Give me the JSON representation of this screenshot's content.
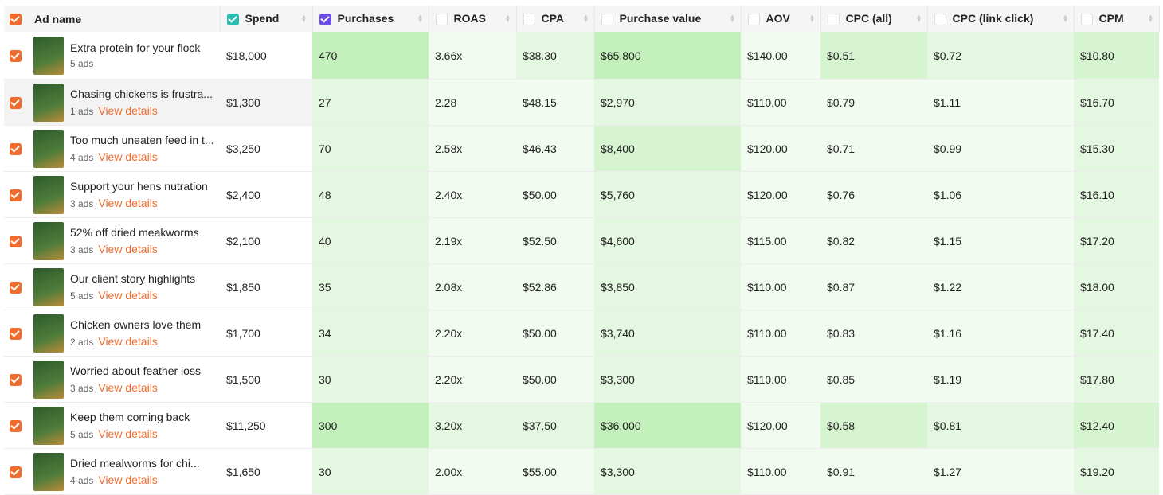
{
  "header": {
    "columns": [
      "Ad name",
      "Spend",
      "Purchases",
      "ROAS",
      "CPA",
      "Purchase value",
      "AOV",
      "CPC (all)",
      "CPC (link click)",
      "CPM"
    ]
  },
  "table": {
    "rows": [
      {
        "name": "Extra protein for your flock",
        "ads": "5 ads",
        "cells": [
          "$18,000",
          "470",
          "3.66x",
          "$38.30",
          "$65,800",
          "$140.00",
          "$0.51",
          "$0.72",
          "$10.80"
        ],
        "shades": [
          "#ffffff",
          "#c3f0bb",
          "#f1fbef",
          "#e4f7e0",
          "#c3f0bb",
          "#f1fbef",
          "#d6f4d0",
          "#e4f7e0",
          "#d6f4d0"
        ]
      },
      {
        "name": "Chasing chickens is frustra...",
        "ads": "1 ads",
        "link": "View details",
        "cells": [
          "$1,300",
          "27",
          "2.28",
          "$48.15",
          "$2,970",
          "$110.00",
          "$0.79",
          "$1.11",
          "$16.70"
        ],
        "shades": [
          "#ffffff",
          "#e4f7e0",
          "#f1fbef",
          "#f1fbef",
          "#e4f7e0",
          "#f1fbef",
          "#f1fbef",
          "#f1fbef",
          "#e4f7e0"
        ]
      },
      {
        "name": "Too much uneaten feed in t...",
        "ads": "4 ads",
        "link": "View details",
        "cells": [
          "$3,250",
          "70",
          "2.58x",
          "$46.43",
          "$8,400",
          "$120.00",
          "$0.71",
          "$0.99",
          "$15.30"
        ],
        "shades": [
          "#ffffff",
          "#e4f7e0",
          "#f1fbef",
          "#f1fbef",
          "#d6f4d0",
          "#f1fbef",
          "#f1fbef",
          "#f1fbef",
          "#e4f7e0"
        ]
      },
      {
        "name": "Support your hens nutration",
        "ads": "3 ads",
        "link": "View details",
        "cells": [
          "$2,400",
          "48",
          "2.40x",
          "$50.00",
          "$5,760",
          "$120.00",
          "$0.76",
          "$1.06",
          "$16.10"
        ],
        "shades": [
          "#ffffff",
          "#e4f7e0",
          "#f1fbef",
          "#f1fbef",
          "#e4f7e0",
          "#f1fbef",
          "#f1fbef",
          "#f1fbef",
          "#e4f7e0"
        ]
      },
      {
        "name": "52% off dried meakworms",
        "ads": "3 ads",
        "link": "View details",
        "cells": [
          "$2,100",
          "40",
          "2.19x",
          "$52.50",
          "$4,600",
          "$115.00",
          "$0.82",
          "$1.15",
          "$17.20"
        ],
        "shades": [
          "#ffffff",
          "#e4f7e0",
          "#f1fbef",
          "#f1fbef",
          "#e4f7e0",
          "#f1fbef",
          "#f1fbef",
          "#f1fbef",
          "#e4f7e0"
        ]
      },
      {
        "name": "Our client story highlights",
        "ads": "5 ads",
        "link": "View details",
        "cells": [
          "$1,850",
          "35",
          "2.08x",
          "$52.86",
          "$3,850",
          "$110.00",
          "$0.87",
          "$1.22",
          "$18.00"
        ],
        "shades": [
          "#ffffff",
          "#e4f7e0",
          "#f1fbef",
          "#f1fbef",
          "#e4f7e0",
          "#f1fbef",
          "#f1fbef",
          "#f1fbef",
          "#e4f7e0"
        ]
      },
      {
        "name": "Chicken owners love them",
        "ads": "2 ads",
        "link": "View details",
        "cells": [
          "$1,700",
          "34",
          "2.20x",
          "$50.00",
          "$3,740",
          "$110.00",
          "$0.83",
          "$1.16",
          "$17.40"
        ],
        "shades": [
          "#ffffff",
          "#e4f7e0",
          "#f1fbef",
          "#f1fbef",
          "#e4f7e0",
          "#f1fbef",
          "#f1fbef",
          "#f1fbef",
          "#e4f7e0"
        ]
      },
      {
        "name": "Worried about feather loss",
        "ads": "3 ads",
        "link": "View details",
        "cells": [
          "$1,500",
          "30",
          "2.20x",
          "$50.00",
          "$3,300",
          "$110.00",
          "$0.85",
          "$1.19",
          "$17.80"
        ],
        "shades": [
          "#ffffff",
          "#e4f7e0",
          "#f1fbef",
          "#f1fbef",
          "#e4f7e0",
          "#f1fbef",
          "#f1fbef",
          "#f1fbef",
          "#e4f7e0"
        ]
      },
      {
        "name": "Keep them coming back",
        "ads": "5 ads",
        "link": "View details",
        "cells": [
          "$11,250",
          "300",
          "3.20x",
          "$37.50",
          "$36,000",
          "$120.00",
          "$0.58",
          "$0.81",
          "$12.40"
        ],
        "shades": [
          "#ffffff",
          "#c3f0bb",
          "#e4f7e0",
          "#e4f7e0",
          "#c3f0bb",
          "#f1fbef",
          "#d6f4d0",
          "#e4f7e0",
          "#d6f4d0"
        ]
      },
      {
        "name": "Dried mealworms for chi...",
        "ads": "4 ads",
        "link": "View details",
        "cells": [
          "$1,650",
          "30",
          "2.00x",
          "$55.00",
          "$3,300",
          "$110.00",
          "$0.91",
          "$1.27",
          "$19.20"
        ],
        "shades": [
          "#ffffff",
          "#e4f7e0",
          "#f1fbef",
          "#f1fbef",
          "#e4f7e0",
          "#f1fbef",
          "#f1fbef",
          "#f1fbef",
          "#e4f7e0"
        ]
      }
    ]
  }
}
